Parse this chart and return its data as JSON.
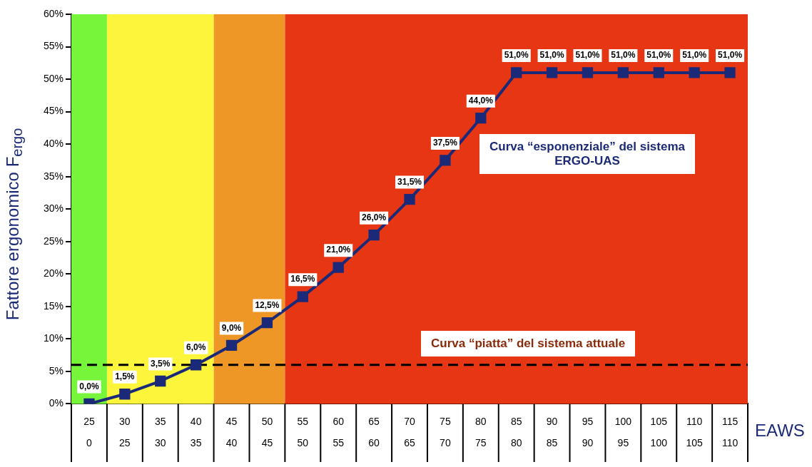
{
  "chart_data": {
    "type": "line",
    "xlabel": "EAWS",
    "ylabel": "Fattore ergonomico F$_{ergo}$",
    "categories": [
      "25\n0",
      "30\n25",
      "35\n30",
      "40\n35",
      "45\n40",
      "50\n45",
      "55\n50",
      "60\n55",
      "65\n60",
      "70\n65",
      "75\n70",
      "80\n75",
      "85\n80",
      "90\n85",
      "95\n90",
      "100\n95",
      "105\n100",
      "110\n105",
      "115\n110"
    ],
    "series": [
      {
        "color": "#1b2a78",
        "values": [
          0,
          1.5,
          3.5,
          6,
          9,
          12.5,
          16.5,
          21,
          26,
          31.5,
          37.5,
          44,
          51,
          51,
          51,
          51,
          51,
          51,
          51
        ],
        "value_labels": [
          "0,0%",
          "1,5%",
          "3,5%",
          "6,0%",
          "9,0%",
          "12,5%",
          "16,5%",
          "21,0%",
          "26,0%",
          "31,5%",
          "37,5%",
          "44,0%",
          "51,0%",
          "51,0%",
          "51,0%",
          "51,0%",
          "51,0%",
          "51,0%",
          "51,0%"
        ]
      }
    ],
    "ylim": [
      0,
      60
    ],
    "yticks": [
      {
        "value": 0,
        "label": "0%"
      },
      {
        "value": 5,
        "label": "5%"
      },
      {
        "value": 10,
        "label": "10%"
      },
      {
        "value": 15,
        "label": "15%"
      },
      {
        "value": 20,
        "label": "20%"
      },
      {
        "value": 25,
        "label": "25%"
      },
      {
        "value": 30,
        "label": "30%"
      },
      {
        "value": 35,
        "label": "35%"
      },
      {
        "value": 40,
        "label": "40%"
      },
      {
        "value": 45,
        "label": "45%"
      },
      {
        "value": 50,
        "label": "50%"
      },
      {
        "value": 55,
        "label": "55%"
      },
      {
        "value": 60,
        "label": "60%"
      }
    ],
    "bands": [
      {
        "axis": "x",
        "from": "25\n0",
        "to": "25\n0",
        "color": "#77f53b"
      },
      {
        "axis": "x",
        "from": "30\n25",
        "to": "40\n35",
        "color": "#fcf53b"
      },
      {
        "axis": "x",
        "from": "45\n40",
        "to": "50\n45",
        "color": "#ee9727"
      },
      {
        "axis": "x",
        "from": "55\n50",
        "to": "115\n110",
        "color": "#e63613"
      }
    ],
    "ref_lines": [
      {
        "axis": "y",
        "value": 6,
        "color": "#000000",
        "line_style": "dashed"
      }
    ],
    "annotations": [
      "Curva “esponenziale” del sistema\nERGO-UAS",
      "Curva “piatta” del sistema attuale"
    ],
    "marker": "square",
    "line_style": "solid",
    "grid": false,
    "legend": false
  }
}
